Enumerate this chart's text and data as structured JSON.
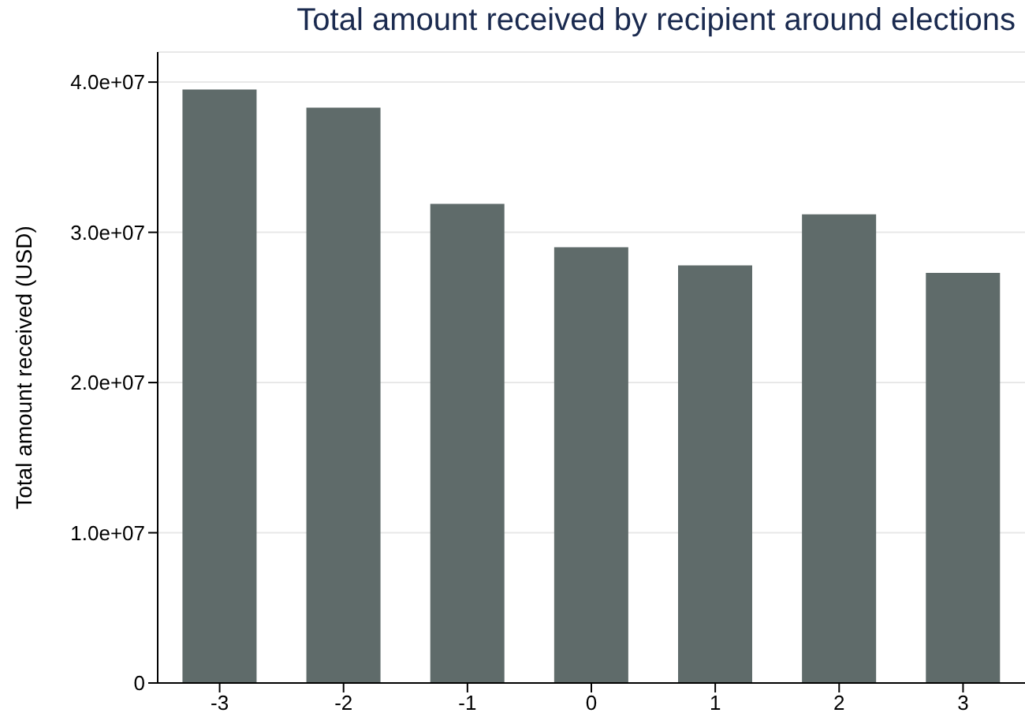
{
  "chart_data": {
    "type": "bar",
    "title": "Total amount received by recipient around elections",
    "ylabel": "Total amount received (USD)",
    "categories": [
      "-3",
      "-2",
      "-1",
      "0",
      "1",
      "2",
      "3"
    ],
    "values": [
      39500000,
      38300000,
      31900000,
      29000000,
      27800000,
      31200000,
      27300000
    ],
    "color": "#5f6b6a",
    "ylim": [
      0,
      42000000
    ],
    "yticks": [
      {
        "value": 0,
        "label": "0"
      },
      {
        "value": 10000000,
        "label": "1.0e+07"
      },
      {
        "value": 20000000,
        "label": "2.0e+07"
      },
      {
        "value": 30000000,
        "label": "3.0e+07"
      },
      {
        "value": 40000000,
        "label": "4.0e+07"
      }
    ],
    "grid": "y"
  }
}
